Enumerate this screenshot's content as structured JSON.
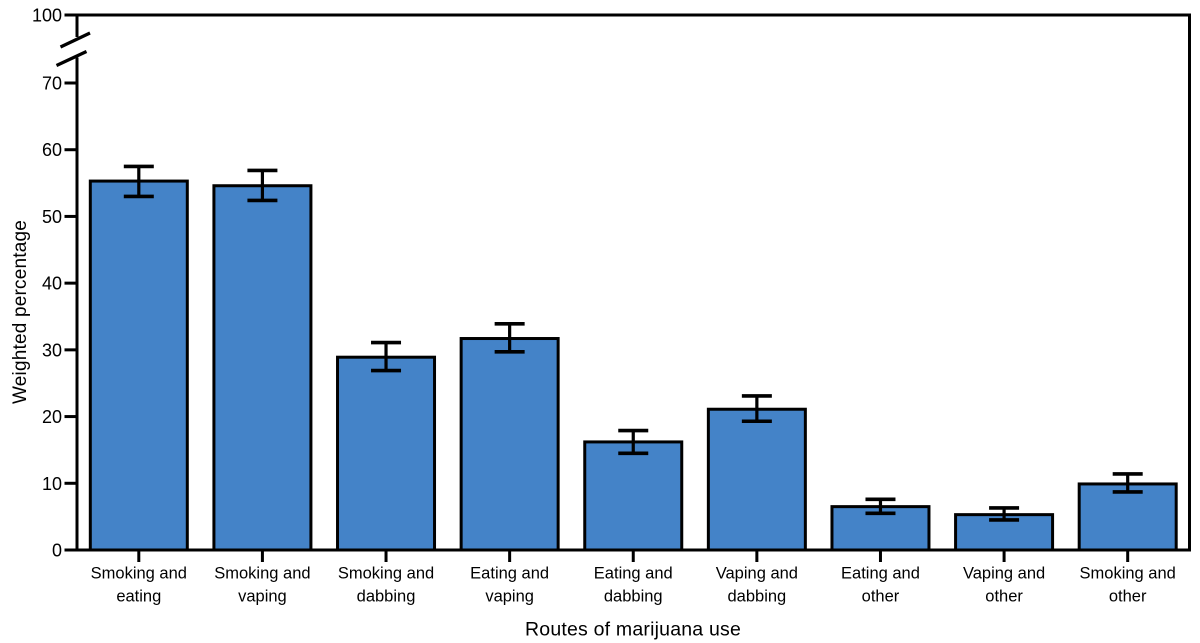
{
  "chart_data": {
    "type": "bar",
    "title": "",
    "xlabel": "Routes of marijuana use",
    "ylabel": "Weighted percentage",
    "categories": [
      "Smoking and eating",
      "Smoking and vaping",
      "Smoking and dabbing",
      "Eating and vaping",
      "Eating and dabbing",
      "Vaping and dabbing",
      "Eating and other",
      "Vaping and other",
      "Smoking and other"
    ],
    "category_label_lines": [
      [
        "Smoking and",
        "eating"
      ],
      [
        "Smoking and",
        "vaping"
      ],
      [
        "Smoking and",
        "dabbing"
      ],
      [
        "Eating and",
        "vaping"
      ],
      [
        "Eating and",
        "dabbing"
      ],
      [
        "Vaping and",
        "dabbing"
      ],
      [
        "Eating and",
        "other"
      ],
      [
        "Vaping and",
        "other"
      ],
      [
        "Smoking and",
        "other"
      ]
    ],
    "values": [
      55.3,
      54.6,
      28.9,
      31.7,
      16.2,
      21.1,
      6.5,
      5.3,
      9.9
    ],
    "error_low": [
      53.0,
      52.4,
      26.9,
      29.7,
      14.5,
      19.3,
      5.5,
      4.5,
      8.7
    ],
    "error_high": [
      57.5,
      56.9,
      31.1,
      33.9,
      17.9,
      23.1,
      7.6,
      6.3,
      11.4
    ],
    "yticks_below_break": [
      0,
      10,
      20,
      30,
      40,
      50,
      60,
      70
    ],
    "ytick_above_break": 100,
    "axis_break": true,
    "ylim_display": [
      0,
      100
    ],
    "grid": false,
    "legend": null,
    "bar_color": "#4483C8",
    "bar_edge_color": "#000000",
    "error_color": "#000000",
    "axis_color": "#000000"
  }
}
